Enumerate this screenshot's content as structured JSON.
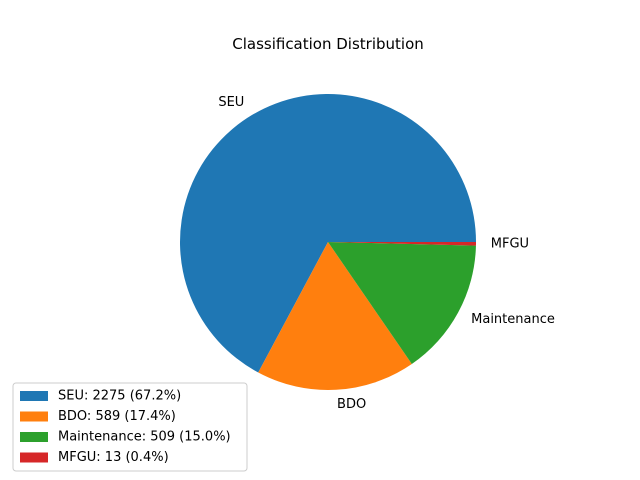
{
  "chart_data": {
    "type": "pie",
    "title": "Classification Distribution",
    "slices": [
      {
        "label": "SEU",
        "value": 2275,
        "percent": 67.2,
        "color": "#1f77b4",
        "legend": "SEU: 2275 (67.2%)"
      },
      {
        "label": "BDO",
        "value": 589,
        "percent": 17.4,
        "color": "#ff7f0e",
        "legend": "BDO: 589 (17.4%)"
      },
      {
        "label": "Maintenance",
        "value": 509,
        "percent": 15.0,
        "color": "#2ca02c",
        "legend": "Maintenance: 509 (15.0%)"
      },
      {
        "label": "MFGU",
        "value": 13,
        "percent": 0.4,
        "color": "#d62728",
        "legend": "MFGU: 13 (0.4%)"
      }
    ],
    "start_angle": "0 degrees (3 o'clock), counterclockwise",
    "legend_position": "lower-left"
  }
}
